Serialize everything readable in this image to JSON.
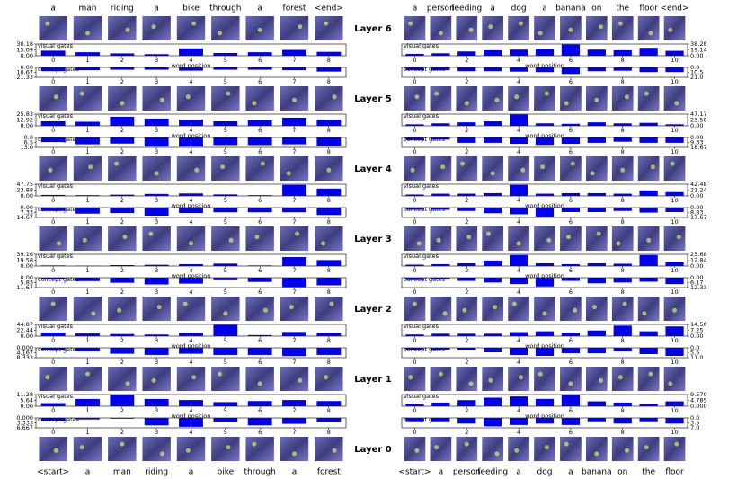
{
  "layer_labels": [
    "Layer 6",
    "Layer 5",
    "Layer 4",
    "Layer 3",
    "Layer 2",
    "Layer 1",
    "Layer 0"
  ],
  "panels": [
    {
      "top_words": [
        "a",
        "man",
        "riding",
        "a",
        "bike",
        "through",
        "a",
        "forest",
        "<end>"
      ],
      "bottom_words": [
        "<start>",
        "a",
        "man",
        "riding",
        "a",
        "bike",
        "through",
        "a",
        "forest"
      ],
      "charts": [
        {
          "type": "bar",
          "title": "visual gates",
          "xlabel": "word position",
          "xlim": [
            -0.5,
            8.5
          ],
          "xticks": [
            0,
            1,
            2,
            3,
            4,
            5,
            6,
            7,
            8
          ],
          "ylim": [
            0,
            30.18
          ],
          "yticks": [
            30.18,
            15.09,
            {
              "value": 0,
              "label": "0.00"
            }
          ],
          "values": [
            13,
            9,
            6,
            4,
            19,
            7,
            9,
            15,
            10
          ]
        },
        {
          "type": "bar",
          "title": "concept gates",
          "inverted": true,
          "xlim": [
            -0.5,
            8.5
          ],
          "xticks": [
            0,
            1,
            2,
            3,
            4,
            5,
            6,
            7,
            8
          ],
          "ylim": [
            0,
            21.33
          ],
          "yticks": [
            {
              "value": 0,
              "label": "0.00"
            },
            10.67,
            21.33
          ],
          "values": [
            8,
            6,
            5,
            5,
            7,
            5,
            5,
            6,
            9
          ]
        },
        {
          "type": "bar",
          "title": "visual gates",
          "xlabel": "word position",
          "xlim": [
            -0.5,
            8.5
          ],
          "xticks": [
            0,
            1,
            2,
            3,
            4,
            5,
            6,
            7,
            8
          ],
          "ylim": [
            0,
            25.83
          ],
          "yticks": [
            25.83,
            12.92,
            {
              "value": 0,
              "label": "0.00"
            }
          ],
          "values": [
            10,
            9,
            20,
            16,
            14,
            10,
            12,
            18,
            14
          ]
        },
        {
          "type": "bar",
          "title": "concept gates",
          "inverted": true,
          "xlim": [
            -0.5,
            8.5
          ],
          "xticks": [
            0,
            1,
            2,
            3,
            4,
            5,
            6,
            7,
            8
          ],
          "ylim": [
            0,
            13
          ],
          "yticks": [
            {
              "value": 0,
              "label": "0.0"
            },
            6.5,
            {
              "value": 13,
              "label": "13.0"
            }
          ],
          "values": [
            6,
            9,
            8,
            12,
            12,
            10,
            10,
            9,
            11
          ]
        },
        {
          "type": "bar",
          "title": "visual gates",
          "xlabel": "word position",
          "xlim": [
            -0.5,
            8.5
          ],
          "xticks": [
            0,
            1,
            2,
            3,
            4,
            5,
            6,
            7,
            8
          ],
          "ylim": [
            0,
            47.75
          ],
          "yticks": [
            47.75,
            23.88,
            {
              "value": 0,
              "label": "0.00"
            }
          ],
          "values": [
            4,
            3,
            5,
            8,
            10,
            6,
            3,
            45,
            30
          ]
        },
        {
          "type": "bar",
          "title": "concept gates",
          "inverted": true,
          "xlim": [
            -0.5,
            8.5
          ],
          "xticks": [
            0,
            1,
            2,
            3,
            4,
            5,
            6,
            7,
            8
          ],
          "ylim": [
            0,
            14.67
          ],
          "yticks": [
            {
              "value": 0,
              "label": "0.00"
            },
            7.33,
            14.67
          ],
          "values": [
            5,
            9,
            8,
            12,
            8,
            7,
            7,
            7,
            11
          ]
        },
        {
          "type": "bar",
          "title": "visual gates",
          "xlabel": "word position",
          "xlim": [
            -0.5,
            8.5
          ],
          "xticks": [
            0,
            1,
            2,
            3,
            4,
            5,
            6,
            7,
            8
          ],
          "ylim": [
            0,
            39.16
          ],
          "yticks": [
            39.16,
            19.58,
            {
              "value": 0,
              "label": "0.00"
            }
          ],
          "values": [
            2,
            1,
            3,
            4,
            6,
            8,
            2,
            30,
            20
          ]
        },
        {
          "type": "bar",
          "title": "concept gates",
          "inverted": true,
          "xlim": [
            -0.5,
            8.5
          ],
          "xticks": [
            0,
            1,
            2,
            3,
            4,
            5,
            6,
            7,
            8
          ],
          "ylim": [
            0,
            11.67
          ],
          "yticks": [
            {
              "value": 0,
              "label": "0.00"
            },
            5.83,
            11.67
          ],
          "values": [
            2,
            4,
            6,
            8,
            7,
            3,
            5,
            11,
            9
          ]
        },
        {
          "type": "bar",
          "title": "visual gates",
          "xlabel": "word position",
          "xlim": [
            -0.5,
            8.5
          ],
          "xticks": [
            0,
            1,
            2,
            3,
            4,
            5,
            6,
            7,
            8
          ],
          "ylim": [
            0,
            44.87
          ],
          "yticks": [
            44.87,
            22.44,
            {
              "value": 0,
              "label": "0.00"
            }
          ],
          "values": [
            14,
            10,
            8,
            6,
            12,
            43,
            4,
            16,
            12
          ]
        },
        {
          "type": "bar",
          "title": "concept gates",
          "inverted": true,
          "xlim": [
            -0.5,
            8.5
          ],
          "xticks": [
            0,
            1,
            2,
            3,
            4,
            5,
            6,
            7,
            8
          ],
          "ylim": [
            0,
            8.333
          ],
          "yticks": [
            {
              "value": 0,
              "label": "0.000"
            },
            4.167,
            8.333
          ],
          "values": [
            2,
            3,
            5,
            6,
            5,
            6,
            6,
            7,
            6
          ]
        },
        {
          "type": "bar",
          "title": "visual gates",
          "xlabel": "word position",
          "xlim": [
            -0.5,
            8.5
          ],
          "xticks": [
            0,
            1,
            2,
            3,
            4,
            5,
            6,
            7,
            8
          ],
          "ylim": [
            0,
            11.28
          ],
          "yticks": [
            11.28,
            5.64,
            {
              "value": 0,
              "label": "0.00"
            }
          ],
          "values": [
            3,
            7,
            11,
            7,
            6,
            4,
            5,
            6,
            5
          ]
        },
        {
          "type": "bar",
          "title": "concept gates",
          "inverted": true,
          "xlim": [
            -0.5,
            8.5
          ],
          "xticks": [
            0,
            1,
            2,
            3,
            4,
            5,
            6,
            7,
            8
          ],
          "ylim": [
            0,
            6.667
          ],
          "yticks": [
            {
              "value": 0,
              "label": "0.000"
            },
            3.333,
            6.667
          ],
          "values": [
            2,
            1,
            0.5,
            5,
            6,
            3,
            5,
            4,
            3
          ]
        }
      ]
    },
    {
      "top_words": [
        "a",
        "person",
        "feeding",
        "a",
        "dog",
        "a",
        "banana",
        "on",
        "the",
        "floor",
        "<end>"
      ],
      "bottom_words": [
        "<start>",
        "a",
        "person",
        "feeding",
        "a",
        "dog",
        "a",
        "banana",
        "on",
        "the",
        "floor"
      ],
      "charts": [
        {
          "type": "bar",
          "title": "visual gates",
          "xlabel": "word position",
          "xlim": [
            -0.5,
            10.5
          ],
          "xticks": [
            0,
            2,
            4,
            6,
            8,
            10
          ],
          "ylim": [
            0,
            38.28
          ],
          "yticks": [
            38.28,
            19.14,
            {
              "value": 0,
              "label": "0.00"
            }
          ],
          "values": [
            6,
            8,
            14,
            18,
            20,
            22,
            37,
            20,
            18,
            26,
            16
          ]
        },
        {
          "type": "bar",
          "title": "concept gates",
          "inverted": true,
          "xlim": [
            -0.5,
            10.5
          ],
          "xticks": [
            0,
            2,
            4,
            6,
            8,
            10
          ],
          "ylim": [
            0,
            21
          ],
          "yticks": [
            {
              "value": 0,
              "label": "0.0"
            },
            10.5,
            {
              "value": 21,
              "label": "21.0"
            }
          ],
          "values": [
            6,
            6,
            8,
            8,
            9,
            10,
            14,
            8,
            7,
            10,
            10
          ]
        },
        {
          "type": "bar",
          "title": "visual gates",
          "xlabel": "word position",
          "xlim": [
            -0.5,
            10.5
          ],
          "xticks": [
            0,
            2,
            4,
            6,
            8,
            10
          ],
          "ylim": [
            0,
            47.17
          ],
          "yticks": [
            47.17,
            23.58,
            {
              "value": 0,
              "label": "0.00"
            }
          ],
          "values": [
            6,
            10,
            14,
            18,
            46,
            10,
            8,
            14,
            10,
            12,
            6
          ]
        },
        {
          "type": "bar",
          "title": "concept gates",
          "inverted": true,
          "xlim": [
            -0.5,
            10.5
          ],
          "xticks": [
            0,
            2,
            4,
            6,
            8,
            10
          ],
          "ylim": [
            0,
            18.67
          ],
          "yticks": [
            {
              "value": 0,
              "label": "0.00"
            },
            9.33,
            18.67
          ],
          "values": [
            5,
            4,
            10,
            10,
            12,
            14,
            12,
            10,
            8,
            10,
            10
          ]
        },
        {
          "type": "bar",
          "title": "visual gates",
          "xlabel": "word position",
          "xlim": [
            -0.5,
            10.5
          ],
          "xticks": [
            0,
            2,
            4,
            6,
            8,
            10
          ],
          "ylim": [
            0,
            42.48
          ],
          "yticks": [
            42.48,
            21.24,
            {
              "value": 0,
              "label": "0.00"
            }
          ],
          "values": [
            5,
            8,
            8,
            10,
            40,
            8,
            10,
            10,
            8,
            20,
            14
          ]
        },
        {
          "type": "bar",
          "title": "concept gates",
          "inverted": true,
          "xlim": [
            -0.5,
            10.5
          ],
          "xticks": [
            0,
            2,
            4,
            6,
            8,
            10
          ],
          "ylim": [
            0,
            17.67
          ],
          "yticks": [
            {
              "value": 0,
              "label": "0.00"
            },
            8.83,
            17.67
          ],
          "values": [
            4,
            4,
            6,
            10,
            12,
            16,
            8,
            8,
            6,
            9,
            8
          ]
        },
        {
          "type": "bar",
          "title": "visual gates",
          "xlabel": "word position",
          "xlim": [
            -0.5,
            10.5
          ],
          "xticks": [
            0,
            2,
            4,
            6,
            8,
            10
          ],
          "ylim": [
            0,
            25.68
          ],
          "yticks": [
            25.68,
            12.84,
            {
              "value": 0,
              "label": "0.00"
            }
          ],
          "values": [
            3,
            4,
            6,
            12,
            24,
            6,
            4,
            6,
            5,
            24,
            8
          ]
        },
        {
          "type": "bar",
          "title": "concept gates",
          "inverted": true,
          "xlim": [
            -0.5,
            10.5
          ],
          "xticks": [
            0,
            2,
            4,
            6,
            8,
            10
          ],
          "ylim": [
            0,
            12.33
          ],
          "yticks": [
            {
              "value": 0,
              "label": "0.00"
            },
            6.17,
            12.33
          ],
          "values": [
            3,
            2,
            4,
            6,
            8,
            11,
            4,
            7,
            6,
            5,
            8
          ]
        },
        {
          "type": "bar",
          "title": "visual gates",
          "xlabel": "word position",
          "xlim": [
            -0.5,
            10.5
          ],
          "xticks": [
            0,
            2,
            4,
            6,
            8,
            10
          ],
          "ylim": [
            0,
            14.5
          ],
          "yticks": [
            {
              "value": 14.5,
              "label": "14.50"
            },
            7.25,
            {
              "value": 0,
              "label": "0.00"
            }
          ],
          "values": [
            2,
            3,
            3,
            3,
            5,
            6,
            4,
            7,
            13,
            6,
            12
          ]
        },
        {
          "type": "bar",
          "title": "concept gates",
          "inverted": true,
          "xlim": [
            -0.5,
            10.5
          ],
          "xticks": [
            0,
            2,
            4,
            6,
            8,
            10
          ],
          "ylim": [
            0,
            11
          ],
          "yticks": [
            {
              "value": 0,
              "label": "0.0"
            },
            5.5,
            {
              "value": 11,
              "label": "11.0"
            }
          ],
          "values": [
            2,
            2,
            3,
            5,
            8,
            9,
            6,
            6,
            4,
            7,
            9
          ]
        },
        {
          "type": "bar",
          "title": "visual gates",
          "xlabel": "word position",
          "xlim": [
            -0.5,
            10.5
          ],
          "xticks": [
            0,
            2,
            4,
            6,
            8,
            10
          ],
          "ylim": [
            0,
            9.57
          ],
          "yticks": [
            {
              "value": 9.57,
              "label": "9.570"
            },
            4.785,
            {
              "value": 0,
              "label": "0.000"
            }
          ],
          "values": [
            2,
            3,
            5,
            7,
            8,
            6,
            9,
            4,
            3,
            2,
            4
          ]
        },
        {
          "type": "bar",
          "title": "concept gates",
          "inverted": true,
          "xlim": [
            -0.5,
            10.5
          ],
          "xticks": [
            0,
            2,
            4,
            6,
            8,
            10
          ],
          "ylim": [
            0,
            7
          ],
          "yticks": [
            {
              "value": 0,
              "label": "0.0"
            },
            3.5,
            {
              "value": 7,
              "label": "7.0"
            }
          ],
          "values": [
            3,
            3,
            4,
            6,
            5,
            4,
            5,
            3,
            4,
            3,
            4
          ]
        }
      ]
    }
  ]
}
